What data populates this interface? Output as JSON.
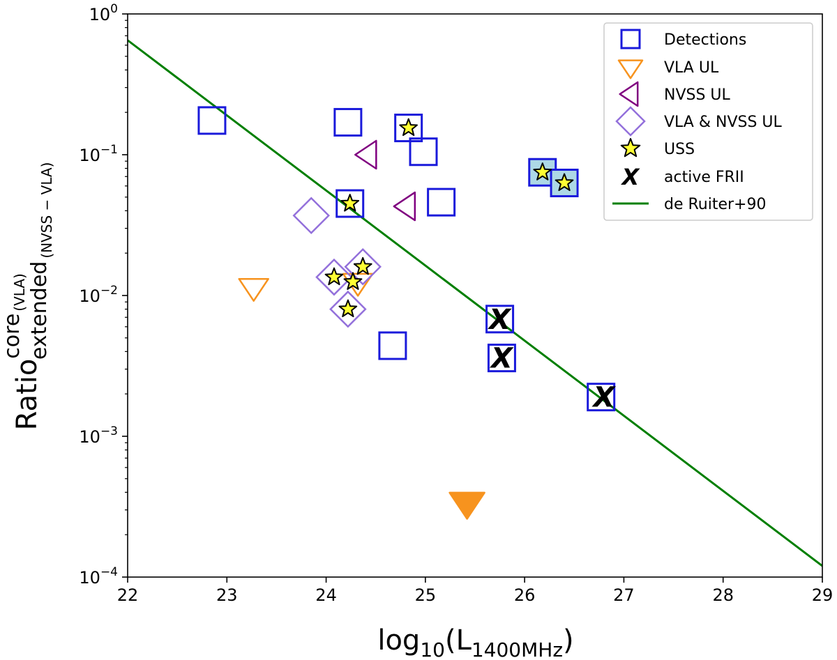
{
  "chart_data": {
    "type": "scatter",
    "title": "",
    "xlabel": {
      "main": "log",
      "sub1": "10",
      "mid": "(L",
      "sub2": "1400MHz",
      "end": ")"
    },
    "ylabel": {
      "main": "Ratio",
      "sup": "core",
      "sup_sub": "(VLA)",
      "sub": "extended",
      "sub_sub": "(NVSS − VLA)"
    },
    "xlim": [
      22,
      29
    ],
    "ylim_log10": [
      -4,
      0
    ],
    "x_ticks": [
      {
        "value": 22,
        "label": "22"
      },
      {
        "value": 23,
        "label": "23"
      },
      {
        "value": 24,
        "label": "24"
      },
      {
        "value": 25,
        "label": "25"
      },
      {
        "value": 26,
        "label": "26"
      },
      {
        "value": 27,
        "label": "27"
      },
      {
        "value": 28,
        "label": "28"
      },
      {
        "value": 29,
        "label": "29"
      }
    ],
    "y_ticks": [
      {
        "exp": 0,
        "base": "10",
        "sup": "0"
      },
      {
        "exp": -1,
        "base": "10",
        "sup": "−1"
      },
      {
        "exp": -2,
        "base": "10",
        "sup": "−2"
      },
      {
        "exp": -3,
        "base": "10",
        "sup": "−3"
      },
      {
        "exp": -4,
        "base": "10",
        "sup": "−4"
      }
    ],
    "legend": {
      "position": "top-right",
      "entries": [
        {
          "label": "Detections",
          "marker": "square"
        },
        {
          "label": "VLA UL",
          "marker": "triangle-down"
        },
        {
          "label": "NVSS UL",
          "marker": "triangle-left"
        },
        {
          "label": "VLA & NVSS UL",
          "marker": "diamond"
        },
        {
          "label": "USS",
          "marker": "star"
        },
        {
          "label": "active FRII",
          "marker": "x-letter"
        },
        {
          "label": "de Ruiter+90",
          "marker": "line"
        }
      ]
    },
    "colors": {
      "detections": "#1a1adb",
      "vla_ul": "#f7931e",
      "nvss_ul": "#800080",
      "vla_nvss_ul": "#9370db",
      "uss_fill": "#ffff33",
      "highlight_fill": "#add8e6",
      "line": "#007f00"
    },
    "series": [
      {
        "name": "Detections",
        "marker": "square",
        "points": [
          {
            "x": 22.85,
            "y": 0.175
          },
          {
            "x": 24.22,
            "y": 0.17
          },
          {
            "x": 24.83,
            "y": 0.155
          },
          {
            "x": 24.98,
            "y": 0.105
          },
          {
            "x": 24.24,
            "y": 0.045
          },
          {
            "x": 25.16,
            "y": 0.046
          },
          {
            "x": 24.67,
            "y": 0.0044
          },
          {
            "x": 25.75,
            "y": 0.0068
          },
          {
            "x": 25.77,
            "y": 0.0036
          },
          {
            "x": 26.77,
            "y": 0.0019
          },
          {
            "x": 26.18,
            "y": 0.075,
            "filled": true
          },
          {
            "x": 26.4,
            "y": 0.063,
            "filled": true
          }
        ]
      },
      {
        "name": "VLA UL",
        "marker": "triangle-down",
        "points": [
          {
            "x": 23.27,
            "y": 0.0115
          },
          {
            "x": 24.32,
            "y": 0.0125
          },
          {
            "x": 25.42,
            "y": 0.00034,
            "filled": true
          }
        ]
      },
      {
        "name": "NVSS UL",
        "marker": "triangle-left",
        "points": [
          {
            "x": 24.42,
            "y": 0.1
          },
          {
            "x": 24.81,
            "y": 0.043
          }
        ]
      },
      {
        "name": "VLA & NVSS UL",
        "marker": "diamond",
        "points": [
          {
            "x": 23.85,
            "y": 0.037
          },
          {
            "x": 24.08,
            "y": 0.0135
          },
          {
            "x": 24.37,
            "y": 0.016
          },
          {
            "x": 24.22,
            "y": 0.008
          }
        ]
      },
      {
        "name": "USS",
        "marker": "star",
        "points": [
          {
            "x": 24.83,
            "y": 0.155
          },
          {
            "x": 24.24,
            "y": 0.045
          },
          {
            "x": 24.08,
            "y": 0.0135
          },
          {
            "x": 24.37,
            "y": 0.016
          },
          {
            "x": 24.27,
            "y": 0.0125
          },
          {
            "x": 24.22,
            "y": 0.008
          },
          {
            "x": 26.18,
            "y": 0.075
          },
          {
            "x": 26.4,
            "y": 0.063
          }
        ]
      },
      {
        "name": "active FRII",
        "marker": "x-letter",
        "points": [
          {
            "x": 25.75,
            "y": 0.0068
          },
          {
            "x": 25.77,
            "y": 0.0036
          },
          {
            "x": 26.8,
            "y": 0.0019
          }
        ]
      },
      {
        "name": "de Ruiter+90",
        "marker": "line",
        "points": [
          {
            "x": 22.0,
            "y": 0.65
          },
          {
            "x": 29.0,
            "y": 0.00012
          }
        ]
      }
    ]
  }
}
